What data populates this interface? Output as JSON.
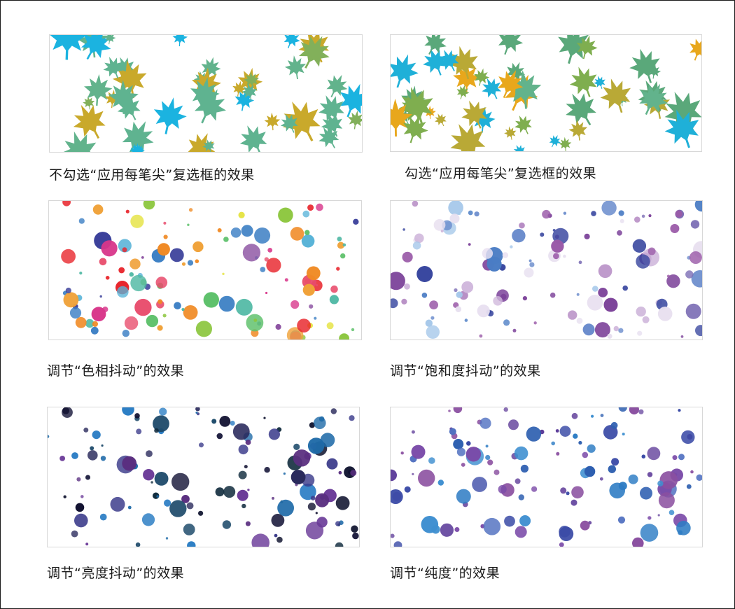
{
  "panels": [
    {
      "caption": "不勾选“应用每笔尖”复选框的效果",
      "kind": "leaves",
      "palette": [
        "#1bb3e0",
        "#c9a92b",
        "#62b38c",
        "#5fb390",
        "#82b05a"
      ],
      "seed": 11
    },
    {
      "caption": "勾选“应用每笔尖”复选框的效果",
      "kind": "leaves",
      "palette": [
        "#b9a936",
        "#7fae4f",
        "#62b38c",
        "#1fb0d8",
        "#e8a71c",
        "#5aa87a"
      ],
      "seed": 23
    },
    {
      "caption": "调节“色相抖动”的效果",
      "kind": "dots",
      "palette": [
        "#e8232a",
        "#f08a24",
        "#f0a23a",
        "#e4e23a",
        "#8cc63e",
        "#5fc16c",
        "#4fb8a4",
        "#5ab4d8",
        "#3c7fc4",
        "#3a3f9a",
        "#8a4fa0",
        "#d8368a",
        "#e84c6c"
      ],
      "seed": 37
    },
    {
      "caption": "调节“饱和度抖动”的效果",
      "kind": "dots",
      "palette": [
        "#3a48a0",
        "#7a3f98",
        "#9a5aa8",
        "#b68cc4",
        "#d0b8dc",
        "#e8e0f0",
        "#6a8ccc",
        "#4a7cc4",
        "#a6c8ea",
        "#7a6cb4"
      ],
      "seed": 53
    },
    {
      "caption": "调节“亮度抖动”的效果",
      "kind": "dots",
      "palette": [
        "#0a0e2a",
        "#101030",
        "#1a1a3c",
        "#2a2a5c",
        "#3a3a8a",
        "#5a2f80",
        "#6a3a98",
        "#1e6aa8",
        "#2b7dc4",
        "#1d4a6a",
        "#0f2a3c"
      ],
      "seed": 71
    },
    {
      "caption": "调节“纯度”的效果",
      "kind": "dots",
      "palette": [
        "#2e5fb0",
        "#3a4aa6",
        "#2d7cc4",
        "#6a4aa0",
        "#7a4aa8",
        "#8a4fa0",
        "#3e8fd0",
        "#5a3a98",
        "#4f6fc0"
      ],
      "seed": 89
    }
  ]
}
